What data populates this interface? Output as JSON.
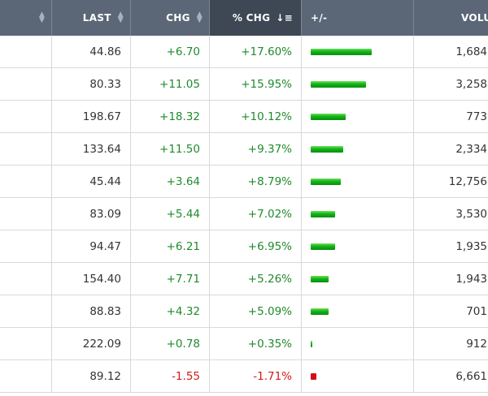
{
  "header": {
    "last": "LAST",
    "chg": "CHG",
    "pct_chg": "% CHG",
    "plus_minus": "+/-",
    "volume": "VOLU"
  },
  "colors": {
    "up": "#1f8a2c",
    "down": "#d11a1a",
    "header_bg": "#5b6776",
    "active_header_bg": "#3e4854"
  },
  "rows": [
    {
      "last": "44.86",
      "chg": "+6.70",
      "pct": "+17.60%",
      "pct_value": 17.6,
      "volume": "1,684"
    },
    {
      "last": "80.33",
      "chg": "+11.05",
      "pct": "+15.95%",
      "pct_value": 15.95,
      "volume": "3,258"
    },
    {
      "last": "198.67",
      "chg": "+18.32",
      "pct": "+10.12%",
      "pct_value": 10.12,
      "volume": "773"
    },
    {
      "last": "133.64",
      "chg": "+11.50",
      "pct": "+9.37%",
      "pct_value": 9.37,
      "volume": "2,334"
    },
    {
      "last": "45.44",
      "chg": "+3.64",
      "pct": "+8.79%",
      "pct_value": 8.79,
      "volume": "12,756"
    },
    {
      "last": "83.09",
      "chg": "+5.44",
      "pct": "+7.02%",
      "pct_value": 7.02,
      "volume": "3,530"
    },
    {
      "last": "94.47",
      "chg": "+6.21",
      "pct": "+6.95%",
      "pct_value": 6.95,
      "volume": "1,935"
    },
    {
      "last": "154.40",
      "chg": "+7.71",
      "pct": "+5.26%",
      "pct_value": 5.26,
      "volume": "1,943"
    },
    {
      "last": "88.83",
      "chg": "+4.32",
      "pct": "+5.09%",
      "pct_value": 5.09,
      "volume": "701"
    },
    {
      "last": "222.09",
      "chg": "+0.78",
      "pct": "+0.35%",
      "pct_value": 0.35,
      "volume": "912"
    },
    {
      "last": "89.12",
      "chg": "-1.55",
      "pct": "-1.71%",
      "pct_value": -1.71,
      "volume": "6,661"
    }
  ]
}
